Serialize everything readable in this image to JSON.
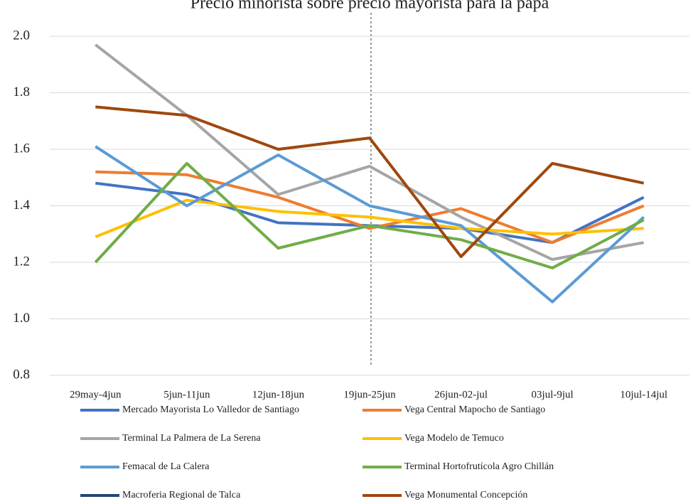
{
  "chart_data": {
    "type": "line",
    "title": "Precio minorista sobre precio mayorista para la papa",
    "categories": [
      "29may-4jun",
      "5jun-11jun",
      "12jun-18jun",
      "19jun-25jun",
      "26jun-02-jul",
      "03jul-9jul",
      "10jul-14jul"
    ],
    "ylim": [
      0.8,
      2.0
    ],
    "yticks": [
      0.8,
      {
        "value": 1,
        "label": "1.0"
      },
      1.2,
      1.4,
      1.6,
      1.8,
      {
        "value": 2,
        "label": "2.0"
      }
    ],
    "grid": true,
    "series": [
      {
        "name": "Mercado Mayorista Lo Valledor de Santiago",
        "color": "#4472c4",
        "values": [
          1.48,
          1.44,
          1.34,
          1.33,
          1.32,
          1.27,
          1.43
        ]
      },
      {
        "name": "Vega Central Mapocho de Santiago",
        "color": "#ed7d31",
        "values": [
          1.52,
          1.51,
          1.43,
          1.32,
          1.39,
          1.27,
          1.4
        ]
      },
      {
        "name": "Terminal La Palmera de La Serena",
        "color": "#a5a5a5",
        "values": [
          1.97,
          1.72,
          1.44,
          1.54,
          1.36,
          1.21,
          1.27
        ]
      },
      {
        "name": "Vega Modelo de Temuco",
        "color": "#ffc000",
        "values": [
          1.29,
          1.42,
          1.38,
          1.36,
          1.32,
          1.3,
          1.32
        ]
      },
      {
        "name": "Femacal de La Calera",
        "color": "#5b9bd5",
        "values": [
          1.61,
          1.4,
          1.58,
          1.4,
          1.33,
          1.06,
          1.36
        ]
      },
      {
        "name": "Terminal Hortofrutícola Agro Chillán",
        "color": "#70ad47",
        "values": [
          1.2,
          1.55,
          1.25,
          1.33,
          1.28,
          1.18,
          1.35
        ]
      },
      {
        "name": "Macroferia Regional de Talca",
        "color": "#264478",
        "values": [
          null,
          null,
          null,
          null,
          null,
          null,
          null
        ]
      },
      {
        "name": "Vega Monumental Concepción",
        "color": "#9e480e",
        "values": [
          1.75,
          1.72,
          1.6,
          1.64,
          1.22,
          1.55,
          1.48
        ]
      }
    ]
  }
}
